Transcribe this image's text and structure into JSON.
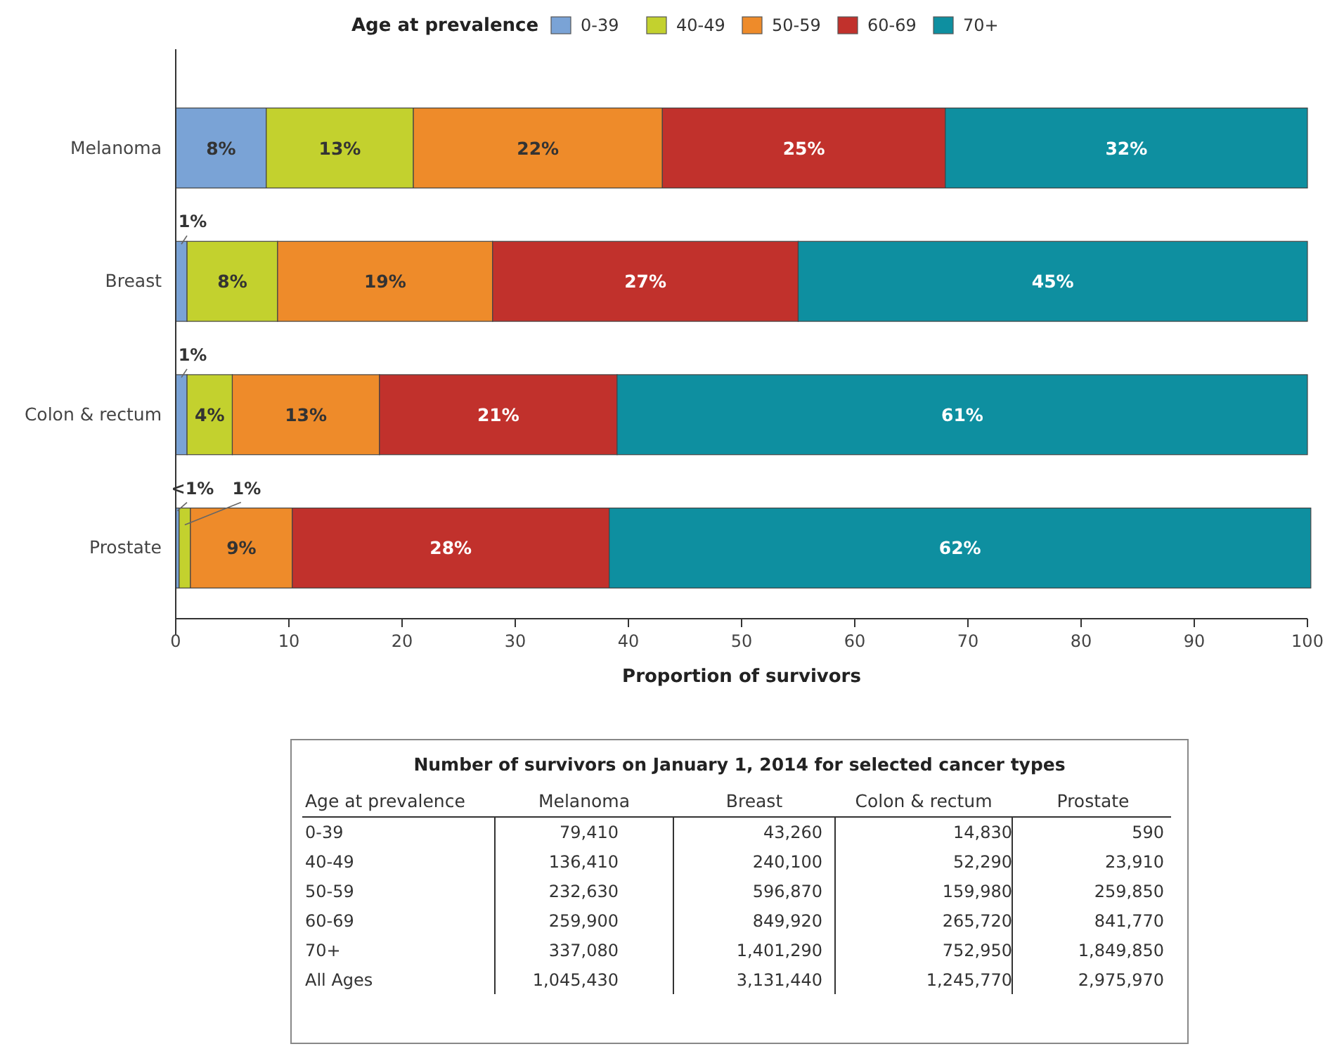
{
  "chart_data": [
    {
      "type": "bar",
      "orientation": "horizontal",
      "stacked": true,
      "categories": [
        "Melanoma",
        "Breast",
        "Colon & rectum",
        "Prostate"
      ],
      "series": [
        {
          "name": "0-39",
          "color": "#7aa3d6",
          "values": [
            8,
            1,
            1,
            0.3
          ],
          "value_labels": [
            "8%",
            "1%",
            "1%",
            "<1%"
          ]
        },
        {
          "name": "40-49",
          "color": "#c3d12e",
          "values": [
            13,
            8,
            4,
            1
          ],
          "value_labels": [
            "13%",
            "8%",
            "4%",
            "1%"
          ]
        },
        {
          "name": "50-59",
          "color": "#ee8b2a",
          "values": [
            22,
            19,
            13,
            9
          ],
          "value_labels": [
            "22%",
            "19%",
            "13%",
            "9%"
          ]
        },
        {
          "name": "60-69",
          "color": "#c1312c",
          "values": [
            25,
            27,
            21,
            28
          ],
          "value_labels": [
            "25%",
            "27%",
            "21%",
            "28%"
          ]
        },
        {
          "name": "70+",
          "color": "#0e8fa0",
          "values": [
            32,
            45,
            61,
            62
          ],
          "value_labels": [
            "32%",
            "45%",
            "61%",
            "62%"
          ]
        }
      ],
      "xlim": [
        0,
        100
      ],
      "xticks": [
        0,
        10,
        20,
        30,
        40,
        50,
        60,
        70,
        80,
        90,
        100
      ],
      "xlabel": "Proportion of survivors",
      "legend_title": "Age at prevalence",
      "legend": "top",
      "grid": false
    },
    {
      "type": "other",
      "title": "Number of survivors on January 1, 2014 for selected cancer types",
      "ylabel": "Age at prevalence",
      "categories": [
        "Melanoma",
        "Breast",
        "Colon & rectum",
        "Prostate"
      ],
      "y_categories": [
        "0-39",
        "40-49",
        "50-59",
        "60-69",
        "70+",
        "All Ages"
      ],
      "cell_labels": [
        [
          "79,410",
          "43,260",
          "14,830",
          "590"
        ],
        [
          "136,410",
          "240,100",
          "52,290",
          "23,910"
        ],
        [
          "232,630",
          "596,870",
          "159,980",
          "259,850"
        ],
        [
          "259,900",
          "849,920",
          "265,720",
          "841,770"
        ],
        [
          "337,080",
          "1,401,290",
          "752,950",
          "1,849,850"
        ],
        [
          "1,045,430",
          "3,131,440",
          "1,245,770",
          "2,975,970"
        ]
      ]
    }
  ]
}
